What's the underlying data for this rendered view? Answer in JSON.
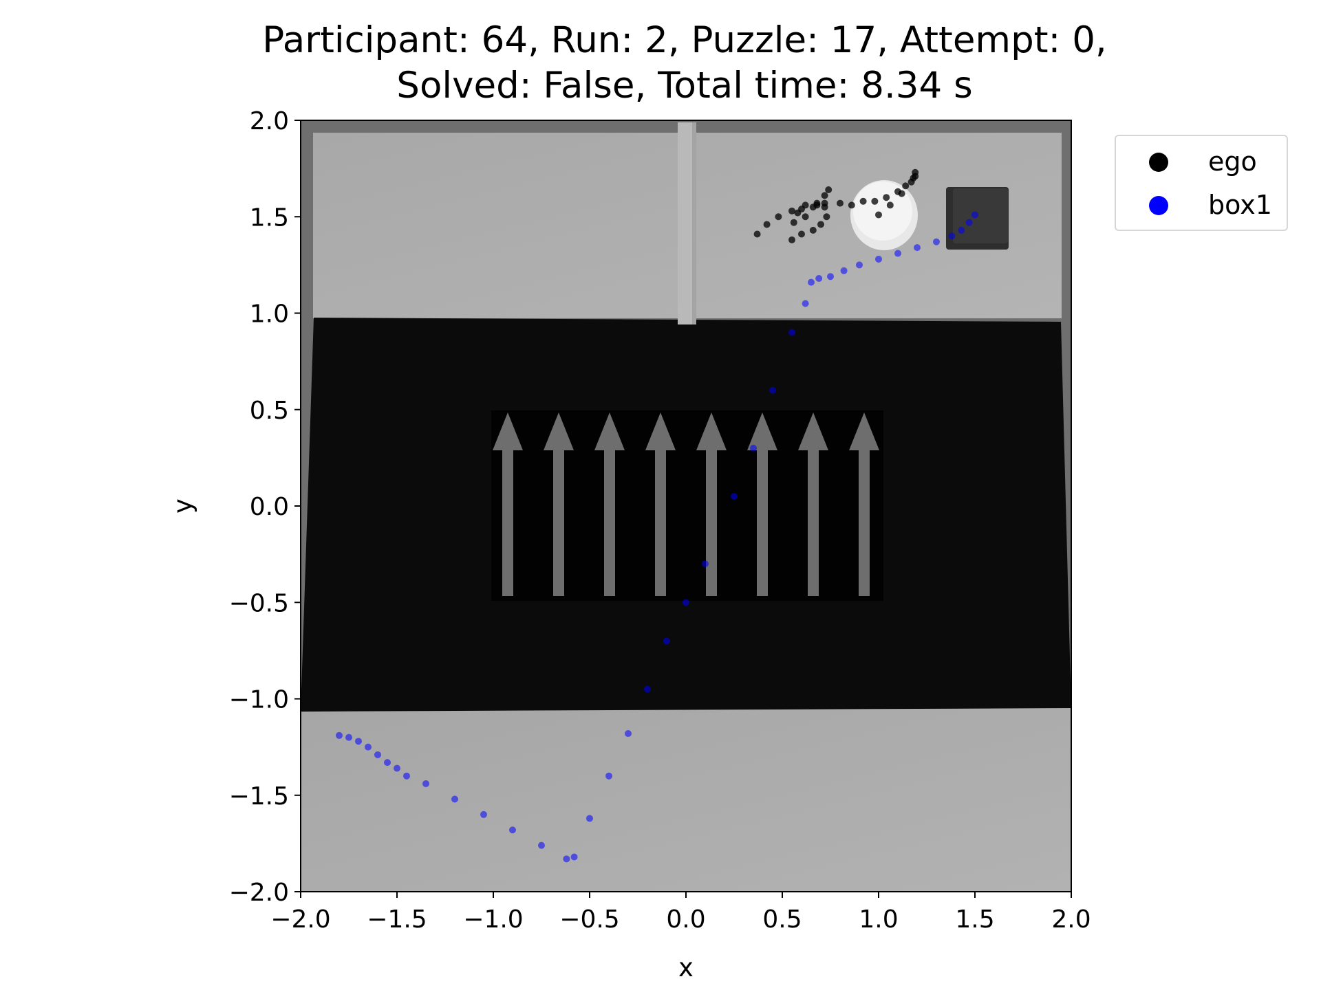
{
  "title_line1": "Participant: 64, Run: 2, Puzzle: 17, Attempt: 0,",
  "title_line2": "Solved: False, Total time: 8.34 s",
  "chart_data": {
    "type": "scatter",
    "title": "Participant: 64, Run: 2, Puzzle: 17, Attempt: 0, Solved: False, Total time: 8.34 s",
    "xlabel": "x",
    "ylabel": "y",
    "xlim": [
      -2.0,
      2.0
    ],
    "ylim": [
      -2.0,
      2.0
    ],
    "xticks": [
      "−2.0",
      "−1.5",
      "−1.0",
      "−0.5",
      "0.0",
      "0.5",
      "1.0",
      "1.5",
      "2.0"
    ],
    "yticks": [
      "2.0",
      "1.5",
      "1.0",
      "0.5",
      "0.0",
      "−0.5",
      "−1.0",
      "−1.5",
      "−2.0"
    ],
    "xtick_values": [
      -2.0,
      -1.5,
      -1.0,
      -0.5,
      0.0,
      0.5,
      1.0,
      1.5,
      2.0
    ],
    "ytick_values": [
      2.0,
      1.5,
      1.0,
      0.5,
      0.0,
      -0.5,
      -1.0,
      -1.5,
      -2.0
    ],
    "legend_position": "outside upper right",
    "background": "top-down scene image",
    "series": [
      {
        "name": "ego",
        "color": "#000000",
        "points": [
          [
            0.37,
            1.41
          ],
          [
            0.42,
            1.46
          ],
          [
            0.48,
            1.5
          ],
          [
            0.55,
            1.53
          ],
          [
            0.6,
            1.54
          ],
          [
            0.66,
            1.55
          ],
          [
            0.72,
            1.57
          ],
          [
            0.8,
            1.57
          ],
          [
            0.86,
            1.56
          ],
          [
            0.92,
            1.58
          ],
          [
            0.98,
            1.58
          ],
          [
            1.04,
            1.6
          ],
          [
            1.1,
            1.63
          ],
          [
            1.14,
            1.66
          ],
          [
            1.18,
            1.7
          ],
          [
            1.19,
            1.73
          ],
          [
            0.55,
            1.38
          ],
          [
            0.6,
            1.41
          ],
          [
            0.66,
            1.43
          ],
          [
            0.7,
            1.46
          ],
          [
            0.73,
            1.5
          ],
          [
            0.72,
            1.55
          ],
          [
            0.68,
            1.57
          ],
          [
            0.62,
            1.56
          ],
          [
            0.58,
            1.52
          ],
          [
            0.56,
            1.47
          ],
          [
            0.62,
            1.5
          ],
          [
            0.68,
            1.56
          ],
          [
            0.72,
            1.61
          ],
          [
            0.74,
            1.64
          ],
          [
            1.0,
            1.51
          ],
          [
            1.06,
            1.56
          ],
          [
            1.12,
            1.62
          ],
          [
            1.17,
            1.68
          ],
          [
            1.19,
            1.71
          ]
        ]
      },
      {
        "name": "box1",
        "color": "#0000ff",
        "points": [
          [
            1.5,
            1.51
          ],
          [
            1.47,
            1.47
          ],
          [
            1.43,
            1.43
          ],
          [
            1.38,
            1.4
          ],
          [
            1.3,
            1.37
          ],
          [
            1.2,
            1.34
          ],
          [
            1.1,
            1.31
          ],
          [
            1.0,
            1.28
          ],
          [
            0.9,
            1.25
          ],
          [
            0.82,
            1.22
          ],
          [
            0.75,
            1.19
          ],
          [
            0.69,
            1.18
          ],
          [
            0.65,
            1.16
          ],
          [
            0.62,
            1.05
          ],
          [
            0.55,
            0.9
          ],
          [
            0.45,
            0.6
          ],
          [
            0.35,
            0.3
          ],
          [
            0.25,
            0.05
          ],
          [
            0.1,
            -0.3
          ],
          [
            0.0,
            -0.5
          ],
          [
            -0.1,
            -0.7
          ],
          [
            -0.2,
            -0.95
          ],
          [
            -0.3,
            -1.18
          ],
          [
            -0.4,
            -1.4
          ],
          [
            -0.5,
            -1.62
          ],
          [
            -0.58,
            -1.82
          ],
          [
            -0.62,
            -1.83
          ],
          [
            -0.75,
            -1.76
          ],
          [
            -0.9,
            -1.68
          ],
          [
            -1.05,
            -1.6
          ],
          [
            -1.2,
            -1.52
          ],
          [
            -1.35,
            -1.44
          ],
          [
            -1.45,
            -1.4
          ],
          [
            -1.5,
            -1.36
          ],
          [
            -1.55,
            -1.33
          ],
          [
            -1.6,
            -1.29
          ],
          [
            -1.65,
            -1.25
          ],
          [
            -1.7,
            -1.22
          ],
          [
            -1.75,
            -1.2
          ],
          [
            -1.8,
            -1.19
          ]
        ]
      }
    ]
  },
  "legend": {
    "items": [
      {
        "label": "ego",
        "color": "#000000"
      },
      {
        "label": "box1",
        "color": "#0000ff"
      }
    ]
  }
}
